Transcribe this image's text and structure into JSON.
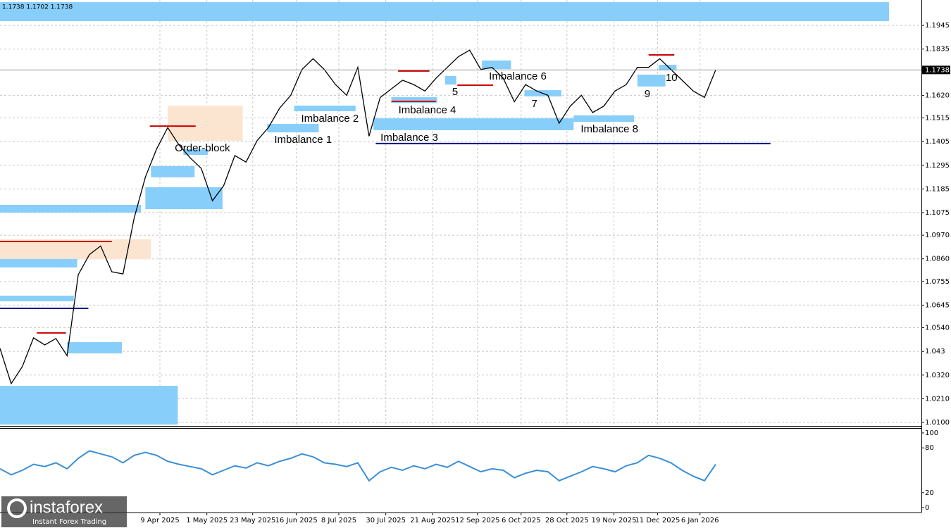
{
  "chart_data": [
    {
      "type": "line",
      "header": "1.1738 1.1702 1.1738",
      "color": "#000000",
      "values": [
        1.0444,
        1.028,
        1.036,
        1.0493,
        1.046,
        1.049,
        1.041,
        1.0787,
        1.088,
        1.092,
        1.08,
        1.079,
        1.105,
        1.124,
        1.137,
        1.147,
        1.139,
        1.133,
        1.128,
        1.113,
        1.12,
        1.134,
        1.131,
        1.141,
        1.147,
        1.156,
        1.162,
        1.174,
        1.179,
        1.174,
        1.167,
        1.162,
        1.175,
        1.143,
        1.161,
        1.165,
        1.169,
        1.167,
        1.164,
        1.17,
        1.175,
        1.18,
        1.183,
        1.174,
        1.175,
        1.17,
        1.159,
        1.167,
        1.164,
        1.162,
        1.149,
        1.157,
        1.162,
        1.154,
        1.157,
        1.164,
        1.167,
        1.175,
        1.175,
        1.179,
        1.174,
        1.169,
        1.164,
        1.161,
        1.1738
      ],
      "xlim": [
        0,
        82.4
      ],
      "ylim": [
        1.0087,
        1.2063
      ],
      "xticks": [
        {
          "value": 14.3,
          "label": "9 Apr 2025"
        },
        {
          "value": 18.5,
          "label": "1 May 2025"
        },
        {
          "value": 22.6,
          "label": "23 May 2025"
        },
        {
          "value": 26.5,
          "label": "16 Jun 2025"
        },
        {
          "value": 30.3,
          "label": "8 Jul 2025"
        },
        {
          "value": 34.5,
          "label": "30 Jul 2025"
        },
        {
          "value": 38.7,
          "label": "21 Aug 2025"
        },
        {
          "value": 42.7,
          "label": "12 Sep 2025"
        },
        {
          "value": 46.6,
          "label": "6 Oct 2025"
        },
        {
          "value": 50.7,
          "label": "28 Oct 2025"
        },
        {
          "value": 54.9,
          "label": "19 Nov 2025"
        },
        {
          "value": 58.8,
          "label": "11 Dec 2025"
        },
        {
          "value": 62.6,
          "label": "6 Jan 2026"
        }
      ],
      "yticks": [
        1.1945,
        1.1835,
        {
          "value": 1.162,
          "label": "1.1620"
        },
        1.1515,
        1.1405,
        1.1295,
        1.1185,
        1.1075,
        {
          "value": 1.097,
          "label": "1.0970"
        },
        {
          "value": 1.086,
          "label": "1.0860"
        },
        1.0755,
        1.0645,
        {
          "value": 1.054,
          "label": "1.0540"
        },
        1.043,
        {
          "value": 1.032,
          "label": "1.0320"
        },
        {
          "value": 1.021,
          "label": "1.0210"
        },
        {
          "value": 1.01,
          "label": "1.0100"
        }
      ],
      "grid": true,
      "last_price": 1.1738,
      "zones": [
        {
          "x": [
            0,
            79.5
          ],
          "y": [
            1.1965,
            1.2053
          ],
          "color": "#87cefa"
        },
        {
          "x": [
            0,
            12.6
          ],
          "y": [
            1.1075,
            1.1111
          ],
          "color": "#87cefa"
        },
        {
          "x": [
            0,
            6.9
          ],
          "y": [
            1.082,
            1.0872
          ],
          "color": "#87cefa"
        },
        {
          "x": [
            0,
            6.6
          ],
          "y": [
            1.0663,
            1.0689
          ],
          "color": "#87cefa"
        },
        {
          "x": [
            6,
            10.9
          ],
          "y": [
            1.0421,
            1.0473
          ],
          "color": "#87cefa"
        },
        {
          "x": [
            0,
            15.9
          ],
          "y": [
            1.009,
            1.027
          ],
          "color": "#87cefa"
        },
        {
          "x": [
            0,
            13.5
          ],
          "y": [
            1.0859,
            1.0951
          ],
          "color": "#fbe5d0"
        },
        {
          "x": [
            13,
            19.9
          ],
          "y": [
            1.1091,
            1.1193
          ],
          "color": "#87cefa"
        },
        {
          "x": [
            13.5,
            17.4
          ],
          "y": [
            1.1239,
            1.1291
          ],
          "color": "#87cefa"
        },
        {
          "x": [
            16.4,
            18.6
          ],
          "y": [
            1.1343,
            1.1369
          ],
          "color": "#87cefa"
        },
        {
          "x": [
            15,
            21.7
          ],
          "y": [
            1.1409,
            1.1572
          ],
          "color": "#fbe5d0",
          "label": "Order-block"
        },
        {
          "x": [
            23.9,
            28.5
          ],
          "y": [
            1.1448,
            1.1487
          ],
          "color": "#87cefa",
          "label": "Imbalance 1"
        },
        {
          "x": [
            26.3,
            31.8
          ],
          "y": [
            1.1546,
            1.1572
          ],
          "color": "#87cefa",
          "label": "Imbalance 2"
        },
        {
          "x": [
            33.4,
            51.3
          ],
          "y": [
            1.1458,
            1.1513
          ],
          "color": "#87cefa",
          "label": "Imbalance 3"
        },
        {
          "x": [
            35,
            39.1
          ],
          "y": [
            1.1585,
            1.1612
          ],
          "color": "#87cefa",
          "label": "Imbalance 4"
        },
        {
          "x": [
            39.8,
            40.8
          ],
          "y": [
            1.167,
            1.171
          ],
          "color": "#87cefa",
          "label": "5"
        },
        {
          "x": [
            43.1,
            45.7
          ],
          "y": [
            1.1742,
            1.1782
          ],
          "color": "#87cefa",
          "label": "Imbalance 6"
        },
        {
          "x": [
            46.9,
            50.2
          ],
          "y": [
            1.1615,
            1.1644
          ],
          "color": "#87cefa",
          "label": "7"
        },
        {
          "x": [
            51.3,
            56.7
          ],
          "y": [
            1.1497,
            1.1527
          ],
          "color": "#87cefa",
          "label": "Imbalance 8"
        },
        {
          "x": [
            57,
            59.5
          ],
          "y": [
            1.1661,
            1.1716
          ],
          "color": "#87cefa",
          "label": "9"
        },
        {
          "x": [
            58.9,
            60.5
          ],
          "y": [
            1.1736,
            1.1762
          ],
          "color": "#87cefa",
          "label": "10"
        }
      ],
      "levels": [
        {
          "x": [
            13.4,
            17.5
          ],
          "y": 1.1477,
          "color": "#cc0000"
        },
        {
          "x": [
            0,
            10
          ],
          "y": 1.0941,
          "color": "#cc0000"
        },
        {
          "x": [
            3.3,
            5.9
          ],
          "y": 1.0516,
          "color": "#cc0000"
        },
        {
          "x": [
            35.6,
            38.4
          ],
          "y": 1.1733,
          "color": "#cc0000"
        },
        {
          "x": [
            35,
            39
          ],
          "y": 1.1592,
          "color": "#cc0000"
        },
        {
          "x": [
            40.9,
            44.1
          ],
          "y": 1.1667,
          "color": "#cc0000"
        },
        {
          "x": [
            58,
            60.3
          ],
          "y": 1.1808,
          "color": "#cc0000"
        },
        {
          "x": [
            33.6,
            68.9
          ],
          "y": 1.1396,
          "color": "#00008b"
        },
        {
          "x": [
            0,
            7.9
          ],
          "y": 1.063,
          "color": "#00008b"
        }
      ]
    },
    {
      "type": "line",
      "color": "#3a8fd8",
      "values": [
        52,
        44,
        50,
        58,
        55,
        60,
        52,
        66,
        76,
        72,
        68,
        60,
        70,
        74,
        70,
        62,
        58,
        55,
        52,
        44,
        50,
        56,
        53,
        60,
        56,
        62,
        66,
        72,
        68,
        60,
        58,
        55,
        60,
        36,
        48,
        54,
        50,
        56,
        52,
        58,
        54,
        62,
        55,
        48,
        52,
        50,
        40,
        46,
        50,
        48,
        36,
        42,
        48,
        55,
        52,
        48,
        56,
        60,
        70,
        66,
        60,
        50,
        42,
        36,
        58
      ],
      "xlim": [
        0,
        82.4
      ],
      "ylim": [
        -5.6,
        105.6
      ],
      "yticks": [
        100,
        80,
        20,
        0
      ]
    }
  ],
  "watermark": {
    "brand": "instaforex",
    "tagline": "Instant Forex Trading"
  }
}
